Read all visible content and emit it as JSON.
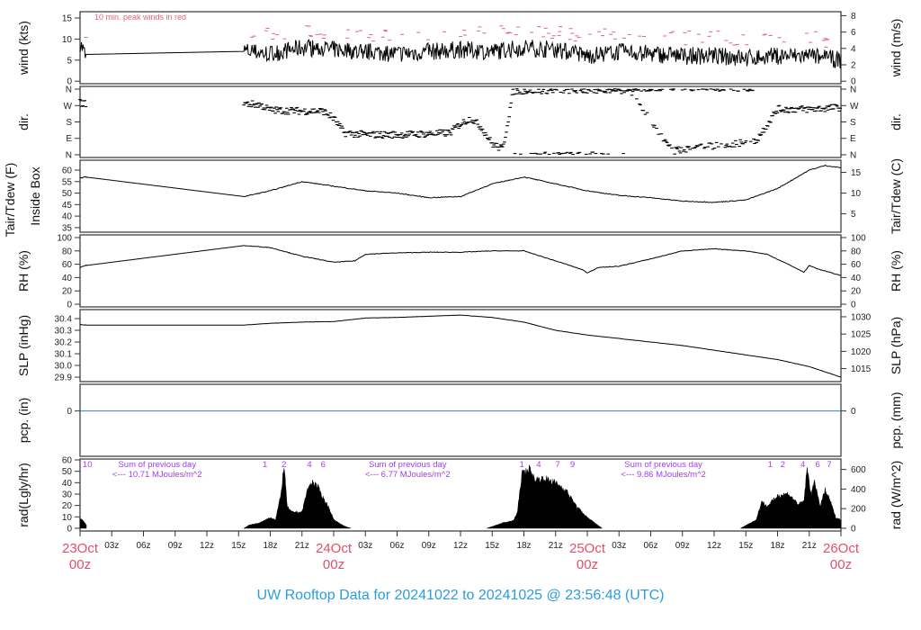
{
  "title": "UW Rooftop Data for 20241022  to  20241025 @ 23:56:48  (UTC)",
  "colors": {
    "peak": "#e8607a",
    "line": "#000000",
    "pcp": "#3a7fd0",
    "rad_text": "#a040f0",
    "day_label": "#e0506a",
    "title": "#2a9ce0"
  },
  "chart_data": {
    "type": "line",
    "x_unit": "hours since 23Oct 00z",
    "xlim": [
      0,
      72
    ],
    "x_ticks": [
      {
        "h": 3,
        "label": "03z"
      },
      {
        "h": 6,
        "label": "06z"
      },
      {
        "h": 9,
        "label": "09z"
      },
      {
        "h": 12,
        "label": "12z"
      },
      {
        "h": 15,
        "label": "15z"
      },
      {
        "h": 18,
        "label": "18z"
      },
      {
        "h": 21,
        "label": "21z"
      },
      {
        "h": 27,
        "label": "03z"
      },
      {
        "h": 30,
        "label": "06z"
      },
      {
        "h": 33,
        "label": "09z"
      },
      {
        "h": 36,
        "label": "12z"
      },
      {
        "h": 39,
        "label": "15z"
      },
      {
        "h": 42,
        "label": "18z"
      },
      {
        "h": 45,
        "label": "21z"
      },
      {
        "h": 51,
        "label": "03z"
      },
      {
        "h": 54,
        "label": "06z"
      },
      {
        "h": 57,
        "label": "09z"
      },
      {
        "h": 60,
        "label": "12z"
      },
      {
        "h": 63,
        "label": "15z"
      },
      {
        "h": 66,
        "label": "18z"
      },
      {
        "h": 69,
        "label": "21z"
      }
    ],
    "day_labels": [
      {
        "h": 0,
        "day": "23Oct",
        "hour": "00z"
      },
      {
        "h": 24,
        "day": "24Oct",
        "hour": "00z"
      },
      {
        "h": 48,
        "day": "25Oct",
        "hour": "00z"
      },
      {
        "h": 72,
        "day": "26Oct",
        "hour": "00z"
      }
    ],
    "panels": {
      "wind": {
        "ylabel": "wind (kts)",
        "y2label": "wind (m/s)",
        "ylim": [
          -0.6,
          16.5
        ],
        "yticks": [
          0,
          5,
          10,
          15
        ],
        "y2ticks": [
          0,
          2,
          4,
          6,
          8
        ],
        "annotation": "10 min. peak winds in red",
        "series": [
          [
            0,
            9
          ],
          [
            0.3,
            7.5
          ],
          [
            0.6,
            5.2
          ],
          [
            15.5,
            7.2
          ],
          [
            18,
            6.5
          ],
          [
            21,
            8
          ],
          [
            24,
            7.5
          ],
          [
            27,
            7
          ],
          [
            30,
            6.5
          ],
          [
            33,
            7
          ],
          [
            36,
            7.5
          ],
          [
            39,
            7
          ],
          [
            42,
            8
          ],
          [
            45,
            7.5
          ],
          [
            48,
            6
          ],
          [
            51,
            7
          ],
          [
            54,
            6.5
          ],
          [
            57,
            6
          ],
          [
            60,
            6
          ],
          [
            63,
            5.5
          ],
          [
            66,
            6
          ],
          [
            69,
            6
          ],
          [
            72,
            5
          ]
        ]
      },
      "dir": {
        "ylabel": "dir.",
        "y2label": "dir.",
        "ylim": [
          -15,
          375
        ],
        "yticks": [
          {
            "v": 0,
            "label": "N"
          },
          {
            "v": 90,
            "label": "E"
          },
          {
            "v": 180,
            "label": "S"
          },
          {
            "v": 270,
            "label": "W"
          },
          {
            "v": 360,
            "label": "N"
          }
        ],
        "series": [
          [
            0,
            285
          ],
          [
            0.6,
            280
          ],
          [
            15.5,
            280
          ],
          [
            17,
            275
          ],
          [
            18,
            245
          ],
          [
            21,
            240
          ],
          [
            23,
            240
          ],
          [
            24,
            200
          ],
          [
            25,
            120
          ],
          [
            27,
            110
          ],
          [
            30,
            110
          ],
          [
            33,
            115
          ],
          [
            35,
            120
          ],
          [
            36,
            170
          ],
          [
            37,
            200
          ],
          [
            38,
            150
          ],
          [
            39,
            60
          ],
          [
            40,
            30
          ],
          [
            41,
            350
          ],
          [
            44,
            355
          ],
          [
            48,
            355
          ],
          [
            52,
            355
          ],
          [
            56,
            20
          ],
          [
            58,
            40
          ],
          [
            60,
            50
          ],
          [
            62,
            60
          ],
          [
            64,
            80
          ],
          [
            66,
            250
          ],
          [
            69,
            250
          ],
          [
            72,
            260
          ]
        ]
      },
      "temp": {
        "ylabel": "Tair/Tdew (F)",
        "ylabel2": "Inside Box",
        "y2label": "Tair/Tdew (C)",
        "ylim": [
          33,
          64.3
        ],
        "yticks": [
          35,
          40,
          45,
          50,
          55,
          60
        ],
        "y2ticks": [
          5,
          10,
          15
        ],
        "series": [
          [
            0,
            56.5
          ],
          [
            0.5,
            57
          ],
          [
            15.5,
            48.5
          ],
          [
            18,
            51
          ],
          [
            21,
            55
          ],
          [
            24,
            53
          ],
          [
            27,
            51
          ],
          [
            30,
            50
          ],
          [
            33,
            48
          ],
          [
            36,
            48.5
          ],
          [
            39,
            54
          ],
          [
            42,
            57
          ],
          [
            45,
            54
          ],
          [
            48,
            51
          ],
          [
            51,
            49
          ],
          [
            54,
            48
          ],
          [
            57,
            46.5
          ],
          [
            60,
            46
          ],
          [
            63,
            47
          ],
          [
            66,
            52
          ],
          [
            69,
            60
          ],
          [
            70.5,
            62
          ],
          [
            72,
            61
          ]
        ]
      },
      "rh": {
        "ylabel": "RH (%)",
        "y2label": "RH (%)",
        "ylim": [
          -4,
          104
        ],
        "yticks": [
          0,
          20,
          40,
          60,
          80,
          100
        ],
        "y2ticks": [
          0,
          20,
          40,
          60,
          80,
          100
        ],
        "series": [
          [
            0,
            55
          ],
          [
            0.5,
            58
          ],
          [
            15.5,
            88
          ],
          [
            18,
            85
          ],
          [
            21,
            72
          ],
          [
            24,
            63
          ],
          [
            26,
            65
          ],
          [
            27,
            75
          ],
          [
            30,
            77
          ],
          [
            33,
            78
          ],
          [
            36,
            78
          ],
          [
            39,
            80
          ],
          [
            42,
            80
          ],
          [
            44,
            70
          ],
          [
            46,
            60
          ],
          [
            47.5,
            52
          ],
          [
            48,
            47
          ],
          [
            49,
            55
          ],
          [
            51,
            57
          ],
          [
            54,
            68
          ],
          [
            57,
            80
          ],
          [
            60,
            83
          ],
          [
            63,
            80
          ],
          [
            65,
            75
          ],
          [
            67,
            60
          ],
          [
            68.5,
            48
          ],
          [
            69,
            58
          ],
          [
            70,
            52
          ],
          [
            72,
            43
          ]
        ]
      },
      "slp": {
        "ylabel": "SLP (inHg)",
        "y2label": "SLP (hPa)",
        "ylim": [
          29.862,
          30.477
        ],
        "yticks": [
          "29.9",
          "30.0",
          "30.1",
          "30.2",
          "30.3",
          "30.4"
        ],
        "y2ticks": [
          1015,
          1020,
          1025,
          1030
        ],
        "series": [
          [
            0,
            30.35
          ],
          [
            0.5,
            30.345
          ],
          [
            15.5,
            30.345
          ],
          [
            18,
            30.36
          ],
          [
            21,
            30.37
          ],
          [
            24,
            30.375
          ],
          [
            27,
            30.405
          ],
          [
            30,
            30.41
          ],
          [
            33,
            30.42
          ],
          [
            36,
            30.43
          ],
          [
            39,
            30.41
          ],
          [
            42,
            30.37
          ],
          [
            45,
            30.3
          ],
          [
            48,
            30.26
          ],
          [
            51,
            30.23
          ],
          [
            54,
            30.2
          ],
          [
            57,
            30.17
          ],
          [
            60,
            30.13
          ],
          [
            63,
            30.09
          ],
          [
            66,
            30.05
          ],
          [
            69,
            29.99
          ],
          [
            72,
            29.9
          ]
        ]
      },
      "pcp": {
        "ylabel": "pcp. (in)",
        "y2label": "pcp. (mm)",
        "ylim": [
          -1.7,
          1
        ],
        "yticks": [
          0
        ],
        "y2ticks": [
          0
        ],
        "series": [
          [
            0,
            0
          ],
          [
            72,
            0
          ]
        ]
      },
      "rad": {
        "ylabel": "rad(Lgly/hr)",
        "y2label": "rad (W/m^2)",
        "ylim": [
          -2.4,
          60.8
        ],
        "yticks": [
          0,
          10,
          20,
          30,
          40,
          50,
          60
        ],
        "y2ticks": [
          0,
          200,
          400,
          600
        ],
        "series": [
          [
            [
              0,
              9
            ],
            [
              0.3,
              7
            ],
            [
              0.6,
              3
            ]
          ],
          [
            [
              15.5,
              0
            ],
            [
              16,
              3
            ],
            [
              17,
              5
            ],
            [
              18,
              10
            ],
            [
              18.5,
              8
            ],
            [
              19,
              30
            ],
            [
              19.3,
              58
            ],
            [
              19.6,
              20
            ],
            [
              20,
              15
            ],
            [
              21,
              15
            ],
            [
              21.5,
              35
            ],
            [
              22,
              43
            ],
            [
              22.5,
              38
            ],
            [
              23,
              28
            ],
            [
              23.5,
              20
            ],
            [
              24,
              8
            ],
            [
              25,
              2
            ],
            [
              25.6,
              0
            ]
          ],
          [
            [
              38.5,
              0
            ],
            [
              40,
              5
            ],
            [
              41,
              7
            ],
            [
              41.4,
              15
            ],
            [
              41.8,
              50
            ],
            [
              42.5,
              55
            ],
            [
              43,
              45
            ],
            [
              44,
              46
            ],
            [
              45,
              42
            ],
            [
              46,
              35
            ],
            [
              47,
              20
            ],
            [
              48,
              10
            ],
            [
              49.4,
              0
            ]
          ],
          [
            [
              62.5,
              0
            ],
            [
              64,
              8
            ],
            [
              64.5,
              25
            ],
            [
              65,
              20
            ],
            [
              66,
              30
            ],
            [
              67,
              32
            ],
            [
              68,
              22
            ],
            [
              68.5,
              25
            ],
            [
              68.8,
              55
            ],
            [
              69.2,
              30
            ],
            [
              69.5,
              45
            ],
            [
              70,
              20
            ],
            [
              70.5,
              35
            ],
            [
              71,
              25
            ],
            [
              71.5,
              10
            ],
            [
              72,
              8
            ]
          ]
        ],
        "hour_labels": [
          {
            "h": 0.7,
            "label": "10"
          },
          {
            "h": 17.5,
            "label": "1"
          },
          {
            "h": 19.3,
            "label": "2"
          },
          {
            "h": 21.7,
            "label": "4"
          },
          {
            "h": 23.0,
            "label": "6"
          },
          {
            "h": 41.8,
            "label": "1"
          },
          {
            "h": 43.4,
            "label": "4"
          },
          {
            "h": 45.2,
            "label": "7"
          },
          {
            "h": 46.6,
            "label": "9"
          },
          {
            "h": 65.3,
            "label": "1"
          },
          {
            "h": 66.5,
            "label": "2"
          },
          {
            "h": 68.4,
            "label": "4"
          },
          {
            "h": 69.8,
            "label": "6"
          },
          {
            "h": 70.9,
            "label": "7"
          }
        ],
        "daily_sums": [
          {
            "h": 7.3,
            "line1": "Sum of previous day",
            "line2": "<--- 10.71 MJoules/m^2"
          },
          {
            "h": 31,
            "line1": "Sum of previous day",
            "line2": "<--- 6.77 MJoules/m^2"
          },
          {
            "h": 55.2,
            "line1": "Sum of previous day",
            "line2": "<--- 9.86 MJoules/m^2"
          }
        ]
      }
    }
  }
}
